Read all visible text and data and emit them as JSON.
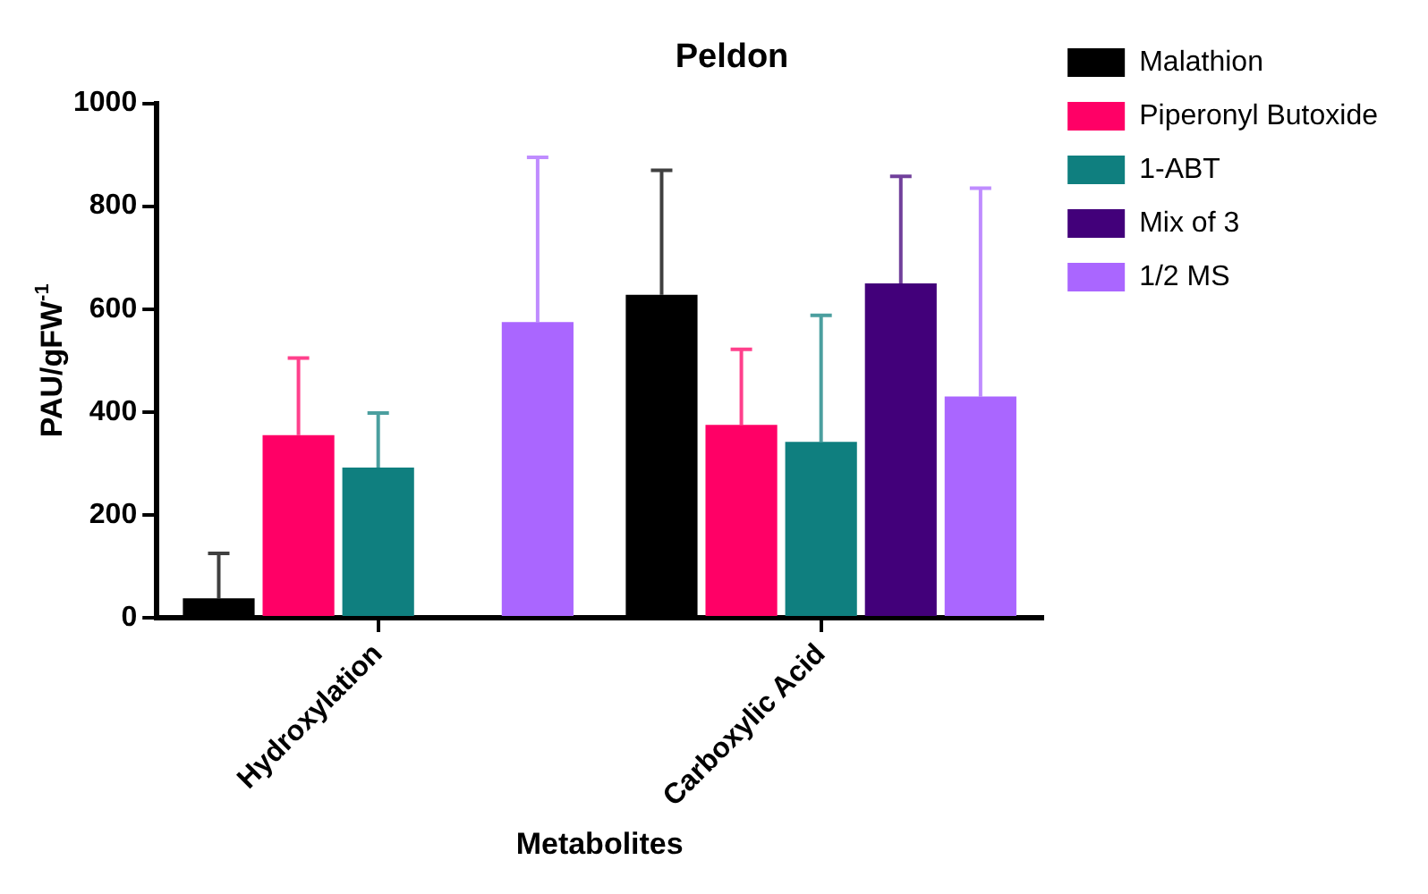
{
  "chart_data": {
    "type": "bar",
    "title": "Peldon",
    "xlabel": "Metabolites",
    "ylabel": "PAU/gFW$^{-1}$",
    "categories": [
      "Hydroxylation",
      "Carboxylic Acid"
    ],
    "series": [
      {
        "name": "Malathion",
        "color": "#000000",
        "values": [
          38,
          628
        ],
        "errors": [
          [
            38,
            125
          ],
          [
            628,
            870
          ]
        ]
      },
      {
        "name": "Piperonyl Butoxide",
        "color": "#ff0066",
        "values": [
          355,
          375
        ],
        "errors": [
          [
            355,
            505
          ],
          [
            375,
            522
          ]
        ]
      },
      {
        "name": "1-ABT",
        "color": "#0f7f7f",
        "values": [
          292,
          342
        ],
        "errors": [
          [
            292,
            398
          ],
          [
            342,
            588
          ]
        ]
      },
      {
        "name": "Mix of 3",
        "color": "#42007a",
        "values": [
          null,
          650
        ],
        "errors": [
          null,
          [
            650,
            858
          ]
        ]
      },
      {
        "name": "1/2 MS",
        "color": "#aa66ff",
        "values": [
          575,
          430
        ],
        "errors": [
          [
            575,
            895
          ],
          [
            430,
            835
          ]
        ]
      }
    ],
    "ylim": [
      0,
      1000
    ],
    "yticks": [
      0,
      200,
      400,
      600,
      800,
      1000
    ],
    "legend": "right"
  }
}
